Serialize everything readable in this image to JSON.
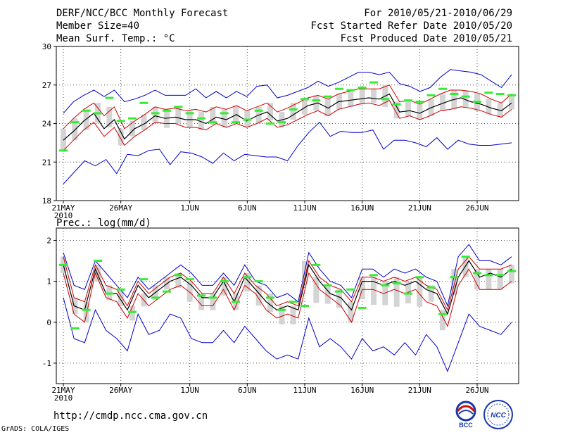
{
  "header": {
    "title": "DERF/NCC/BCC Monthly Forecast",
    "member_size": "Member Size=40",
    "variable_top": "Mean Surf. Temp.: °C",
    "period": "For 2010/05/21-2010/06/29",
    "started": "Fcst Started Refer Date 2010/05/20",
    "produced": "Fcst Produced Date 2010/05/21"
  },
  "footer": {
    "url": "http://cmdp.ncc.cma.gov.cn",
    "credit": "GrADS: COLA/IGES",
    "logo1_text": "BCC",
    "logo2_text": "NCC"
  },
  "colors": {
    "max_min": "#0000cc",
    "spread": "#cc0000",
    "mean": "#000000",
    "observed": "#33ee33",
    "box": "#d4d4d4",
    "grid": "#555555"
  },
  "chart_data": [
    {
      "type": "line",
      "title": "Mean Surf. Temp.: °C",
      "ylabel": "°C",
      "ylim": [
        18,
        30
      ],
      "yticks": [
        18,
        21,
        24,
        27,
        30
      ],
      "x_tick_labels": [
        "21MAY",
        "26MAY",
        "1JUN",
        "6JUN",
        "11JUN",
        "16JUN",
        "21JUN",
        "26JUN"
      ],
      "x_tick_days": [
        1,
        6,
        12,
        17,
        22,
        27,
        32,
        37
      ],
      "first_label_year": "2010",
      "grid": true,
      "days": 40,
      "series": [
        {
          "name": "max",
          "values": [
            24.8,
            25.7,
            26.2,
            26.6,
            26.1,
            26.6,
            25.7,
            25.9,
            26.2,
            26.6,
            26.2,
            26.2,
            26.2,
            26.7,
            26.0,
            26.5,
            26.0,
            26.5,
            26.1,
            26.9,
            27.0,
            26.0,
            26.2,
            26.5,
            26.8,
            27.3,
            26.9,
            27.2,
            27.6,
            28.0,
            28.0,
            27.8,
            28.0,
            27.1,
            26.9,
            26.5,
            26.8,
            27.6,
            28.2,
            28.1,
            28.0,
            27.8,
            27.3,
            26.8,
            27.8
          ]
        },
        {
          "name": "upper",
          "values": [
            23.6,
            24.4,
            25.1,
            25.6,
            24.6,
            25.3,
            23.6,
            24.2,
            24.7,
            25.3,
            25.1,
            25.2,
            25.0,
            25.1,
            24.9,
            25.3,
            25.1,
            25.4,
            25.0,
            25.3,
            25.6,
            24.9,
            25.2,
            25.6,
            26.0,
            26.2,
            25.9,
            26.3,
            26.5,
            26.7,
            26.7,
            26.7,
            27.0,
            25.7,
            25.8,
            25.5,
            25.9,
            26.3,
            26.6,
            26.6,
            26.5,
            26.3,
            25.9,
            25.6,
            26.3
          ]
        },
        {
          "name": "mean",
          "values": [
            22.7,
            23.4,
            24.2,
            24.8,
            23.6,
            24.3,
            22.8,
            23.6,
            24.0,
            24.6,
            24.4,
            24.5,
            24.3,
            24.3,
            24.0,
            24.5,
            24.3,
            24.7,
            24.2,
            24.6,
            24.9,
            24.2,
            24.4,
            24.9,
            25.4,
            25.6,
            25.2,
            25.7,
            25.8,
            25.9,
            26.0,
            25.9,
            26.3,
            24.9,
            25.0,
            24.8,
            25.2,
            25.5,
            25.8,
            26.0,
            25.7,
            25.5,
            25.2,
            25.0,
            25.6
          ]
        },
        {
          "name": "lower",
          "values": [
            21.9,
            22.7,
            23.5,
            24.1,
            23.0,
            23.7,
            22.3,
            23.0,
            23.5,
            24.1,
            24.0,
            24.0,
            23.7,
            23.7,
            23.5,
            24.0,
            23.7,
            24.0,
            23.7,
            24.0,
            24.4,
            23.7,
            23.9,
            24.3,
            24.7,
            25.0,
            24.6,
            25.1,
            25.3,
            25.5,
            25.6,
            25.4,
            25.8,
            24.4,
            24.6,
            24.3,
            24.6,
            25.0,
            25.1,
            25.3,
            25.2,
            25.0,
            24.7,
            24.5,
            25.1
          ]
        },
        {
          "name": "min",
          "values": [
            19.3,
            20.2,
            21.1,
            20.7,
            21.2,
            20.1,
            21.6,
            21.5,
            21.9,
            22.0,
            20.8,
            21.8,
            21.7,
            21.4,
            20.9,
            21.7,
            21.1,
            21.6,
            21.5,
            21.4,
            21.4,
            21.1,
            22.3,
            23.3,
            24.1,
            23.0,
            23.4,
            23.3,
            23.3,
            23.5,
            22.0,
            22.7,
            22.7,
            22.5,
            22.2,
            22.9,
            22.0,
            22.7,
            22.4,
            22.3,
            22.3,
            22.4,
            22.5
          ]
        },
        {
          "name": "observed",
          "values": [
            21.9,
            24.1,
            25.0,
            24.8,
            26.0,
            24.2,
            24.4,
            25.6,
            24.8,
            25.0,
            25.3,
            24.8,
            24.4,
            24.1,
            24.8,
            24.1,
            24.3,
            25.0,
            24.0,
            24.1,
            25.1,
            25.9,
            25.8,
            26.1,
            26.7,
            26.6,
            26.8,
            27.2,
            25.9,
            25.5,
            25.8,
            25.7,
            26.2,
            26.7,
            26.3,
            26.1,
            25.7,
            26.4,
            26.3,
            26.2
          ]
        }
      ]
    },
    {
      "type": "line",
      "title": "Prec.: log(mm/d)",
      "ylabel": "log(mm/d)",
      "ylim": [
        -1.5,
        2.3
      ],
      "yticks": [
        -1,
        0,
        1,
        2
      ],
      "x_tick_labels": [
        "21MAY",
        "26MAY",
        "1JUN",
        "6JUN",
        "11JUN",
        "16JUN",
        "21JUN",
        "26JUN"
      ],
      "x_tick_days": [
        1,
        6,
        12,
        17,
        22,
        27,
        32,
        37
      ],
      "first_label_year": "2010",
      "grid": true,
      "days": 40,
      "series": [
        {
          "name": "max",
          "values": [
            1.7,
            0.9,
            0.8,
            1.5,
            1.2,
            0.9,
            0.6,
            1.1,
            0.8,
            1.0,
            1.2,
            1.4,
            1.2,
            0.9,
            0.9,
            1.2,
            0.9,
            1.4,
            1.0,
            0.9,
            0.6,
            0.7,
            0.5,
            1.7,
            1.3,
            1.0,
            0.9,
            0.6,
            1.3,
            1.3,
            1.1,
            1.3,
            1.2,
            1.3,
            1.1,
            1.0,
            0.4,
            1.6,
            1.9,
            1.5,
            1.5,
            1.4,
            1.6
          ]
        },
        {
          "name": "upper",
          "values": [
            1.6,
            0.6,
            0.5,
            1.4,
            0.9,
            0.8,
            0.4,
            1.0,
            0.7,
            0.9,
            1.1,
            1.2,
            1.0,
            0.7,
            0.7,
            1.1,
            0.7,
            1.2,
            0.9,
            0.7,
            0.4,
            0.5,
            0.4,
            1.5,
            1.1,
            0.9,
            0.8,
            0.5,
            1.1,
            1.1,
            1.0,
            1.1,
            1.0,
            1.1,
            0.9,
            0.8,
            0.3,
            1.3,
            1.6,
            1.3,
            1.3,
            1.3,
            1.4
          ]
        },
        {
          "name": "mean",
          "values": [
            1.4,
            0.4,
            0.3,
            1.3,
            0.7,
            0.7,
            0.3,
            0.9,
            0.6,
            0.8,
            1.0,
            1.1,
            0.9,
            0.6,
            0.6,
            1.0,
            0.5,
            1.1,
            0.8,
            0.5,
            0.3,
            0.4,
            0.3,
            1.4,
            1.0,
            0.7,
            0.6,
            0.3,
            1.0,
            1.0,
            0.9,
            1.0,
            0.9,
            1.0,
            0.8,
            0.7,
            0.2,
            1.1,
            1.5,
            1.1,
            1.2,
            1.1,
            1.3
          ]
        },
        {
          "name": "lower",
          "values": [
            1.2,
            0.2,
            0.0,
            1.2,
            0.6,
            0.5,
            0.1,
            0.7,
            0.4,
            0.6,
            0.8,
            0.9,
            0.7,
            0.4,
            0.4,
            0.8,
            0.3,
            0.9,
            0.7,
            0.3,
            0.1,
            0.2,
            0.1,
            1.2,
            0.8,
            0.6,
            0.4,
            0.0,
            0.8,
            0.8,
            0.7,
            0.8,
            0.7,
            0.8,
            0.5,
            0.4,
            -0.1,
            0.9,
            1.3,
            0.8,
            0.8,
            0.8,
            1.0
          ]
        },
        {
          "name": "min",
          "values": [
            0.6,
            -0.4,
            -0.5,
            0.3,
            -0.2,
            -0.4,
            -0.7,
            0.2,
            -0.3,
            -0.2,
            0.2,
            0.1,
            -0.4,
            -0.5,
            -0.5,
            -0.2,
            -0.5,
            -0.1,
            -0.4,
            -0.7,
            -0.9,
            -0.8,
            -0.9,
            0.1,
            -0.6,
            -0.4,
            -0.6,
            -0.9,
            -0.4,
            -0.7,
            -0.6,
            -0.8,
            -0.5,
            -0.8,
            -0.3,
            -0.6,
            -1.2,
            -0.5,
            0.2,
            -0.1,
            -0.2,
            -0.3,
            0.0
          ]
        },
        {
          "name": "observed",
          "values": [
            1.4,
            -0.15,
            0.3,
            1.5,
            0.7,
            0.8,
            0.25,
            1.05,
            0.6,
            0.75,
            1.15,
            1.05,
            0.65,
            0.6,
            1.0,
            0.5,
            1.1,
            1.0,
            0.6,
            0.3,
            0.5,
            0.4,
            1.4,
            0.9,
            0.75,
            0.8,
            0.35,
            1.15,
            0.9,
            0.95,
            0.7,
            1.1,
            0.85,
            0.2,
            1.1,
            1.6,
            1.2,
            1.15,
            1.15,
            1.25
          ]
        }
      ]
    }
  ]
}
